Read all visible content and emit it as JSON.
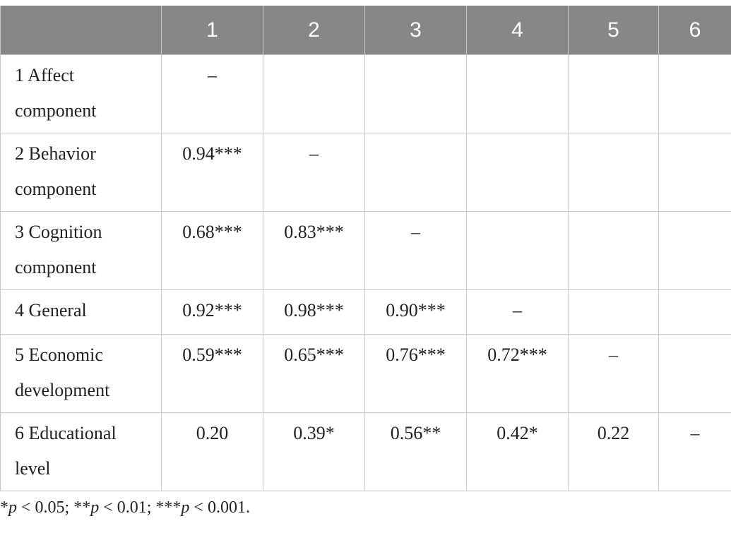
{
  "table": {
    "header": [
      "1",
      "2",
      "3",
      "4",
      "5",
      "6"
    ],
    "rows": [
      {
        "label": "1 Affect component",
        "cells": [
          "–"
        ]
      },
      {
        "label": "2 Behavior component",
        "cells": [
          "0.94***",
          "–"
        ]
      },
      {
        "label": "3 Cognition component",
        "cells": [
          "0.68***",
          "0.83***",
          "–"
        ]
      },
      {
        "label": "4 General",
        "cells": [
          "0.92***",
          "0.98***",
          "0.90***",
          "–"
        ]
      },
      {
        "label": "5 Economic development",
        "cells": [
          "0.59***",
          "0.65***",
          "0.76***",
          "0.72***",
          "–"
        ]
      },
      {
        "label": "6 Educational level",
        "cells": [
          "0.20",
          "0.39*",
          "0.56**",
          "0.42*",
          "0.22",
          "–"
        ]
      }
    ]
  },
  "footnote": [
    "*",
    "p",
    " < 0.05; **",
    "p",
    " < 0.01; ***",
    "p",
    " < 0.001."
  ]
}
